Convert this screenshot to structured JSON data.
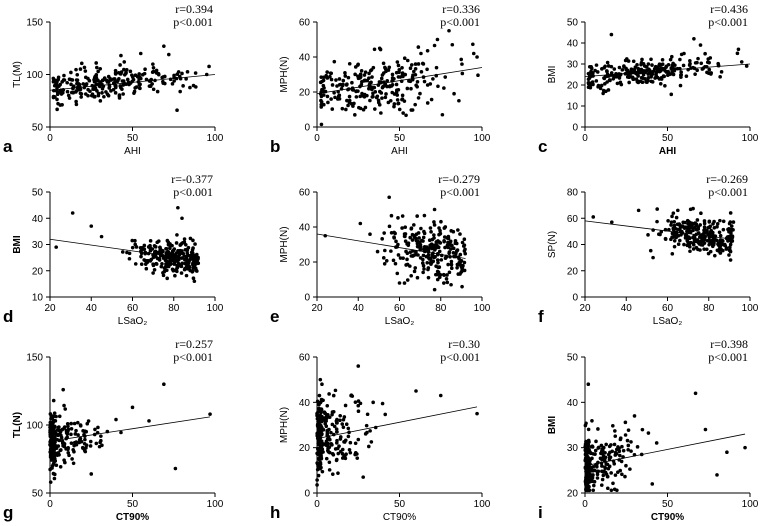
{
  "figure": {
    "background": "#ffffff",
    "point_color": "#000000",
    "line_color": "#000000"
  },
  "chart_data": [
    {
      "id": "a",
      "type": "scatter",
      "panel_label": "a",
      "xlabel": "AHI",
      "xlabel_bold": false,
      "ylabel": "TL(M)",
      "ylabel_bold": false,
      "xlim": [
        0,
        100
      ],
      "ylim": [
        50,
        150
      ],
      "xticks": [
        "0",
        "50",
        "100"
      ],
      "yticks": [
        "50",
        "100",
        "150"
      ],
      "stat_r": "r=0.394",
      "stat_p": "p<0.001",
      "fit": {
        "x0": 0,
        "y0": 85,
        "x1": 100,
        "y1": 100
      },
      "cloud": {
        "n": 260,
        "x_mean": 35,
        "x_sd": 23,
        "x_min": 2,
        "x_max": 98,
        "y_sd": 8,
        "seed": 11
      },
      "points": [
        [
          80,
          101
        ],
        [
          95,
          100
        ],
        [
          69,
          127
        ],
        [
          72,
          119
        ],
        [
          55,
          120
        ],
        [
          43,
          118
        ],
        [
          77,
          66
        ],
        [
          45,
          112
        ],
        [
          28,
          111
        ]
      ]
    },
    {
      "id": "b",
      "type": "scatter",
      "panel_label": "b",
      "xlabel": "AHI",
      "xlabel_bold": false,
      "ylabel": "MPH(N)",
      "ylabel_bold": false,
      "xlim": [
        0,
        100
      ],
      "ylim": [
        0,
        60
      ],
      "xticks": [
        "0",
        "50",
        "100"
      ],
      "yticks": [
        "0",
        "20",
        "40",
        "60"
      ],
      "stat_r": "r=0.336",
      "stat_p": "p<0.001",
      "fit": {
        "x0": 0,
        "y0": 19,
        "x1": 100,
        "y1": 34
      },
      "cloud": {
        "n": 260,
        "x_mean": 35,
        "x_sd": 23,
        "x_min": 2,
        "x_max": 98,
        "y_sd": 8,
        "seed": 23
      },
      "points": [
        [
          80,
          55
        ],
        [
          73,
          50
        ],
        [
          82,
          47
        ],
        [
          95,
          42
        ],
        [
          97,
          40
        ],
        [
          63,
          42
        ],
        [
          38,
          45
        ],
        [
          76,
          7
        ],
        [
          86,
          15
        ],
        [
          55,
          38
        ]
      ]
    },
    {
      "id": "c",
      "type": "scatter",
      "panel_label": "c",
      "xlabel": "AHI",
      "xlabel_bold": true,
      "ylabel": "BMI",
      "ylabel_bold": false,
      "xlim": [
        0,
        100
      ],
      "ylim": [
        0,
        50
      ],
      "xticks": [
        "0",
        "50",
        "100"
      ],
      "yticks": [
        "0",
        "10",
        "20",
        "30",
        "40",
        "50"
      ],
      "stat_r": "r=0.436",
      "stat_p": "p<0.001",
      "fit": {
        "x0": 0,
        "y0": 24,
        "x1": 100,
        "y1": 30
      },
      "cloud": {
        "n": 260,
        "x_mean": 35,
        "x_sd": 23,
        "x_min": 2,
        "x_max": 98,
        "y_sd": 3.2,
        "seed": 37
      },
      "points": [
        [
          16,
          44
        ],
        [
          66,
          42
        ],
        [
          93,
          37
        ],
        [
          95,
          31
        ],
        [
          98,
          29
        ],
        [
          11,
          16
        ],
        [
          70,
          39
        ],
        [
          60,
          35
        ]
      ]
    },
    {
      "id": "d",
      "type": "scatter",
      "panel_label": "d",
      "xlabel": "LSaO₂",
      "xlabel_bold": false,
      "ylabel": "BMI",
      "ylabel_bold": true,
      "xlim": [
        20,
        100
      ],
      "ylim": [
        10,
        50
      ],
      "xticks": [
        "20",
        "40",
        "60",
        "80",
        "100"
      ],
      "yticks": [
        "10",
        "20",
        "30",
        "40",
        "50"
      ],
      "stat_r": "r=-0.377",
      "stat_p": "p<0.001",
      "fit": {
        "x0": 20,
        "y0": 32,
        "x1": 92,
        "y1": 24
      },
      "cloud": {
        "n": 260,
        "x_mean": 80,
        "x_sd": 9,
        "x_min": 35,
        "x_max": 92,
        "y_sd": 3.2,
        "seed": 53
      },
      "points": [
        [
          23,
          29
        ],
        [
          31,
          42
        ],
        [
          82,
          44
        ],
        [
          84,
          40
        ],
        [
          40,
          37
        ],
        [
          90,
          16
        ],
        [
          45,
          33
        ]
      ]
    },
    {
      "id": "e",
      "type": "scatter",
      "panel_label": "e",
      "xlabel": "LSaO₂",
      "xlabel_bold": false,
      "ylabel": "MPH(N)",
      "ylabel_bold": false,
      "xlim": [
        20,
        100
      ],
      "ylim": [
        0,
        60
      ],
      "xticks": [
        "20",
        "40",
        "60",
        "80",
        "100"
      ],
      "yticks": [
        "0",
        "20",
        "40",
        "60"
      ],
      "stat_r": "r=-0.279",
      "stat_p": "p<0.001",
      "fit": {
        "x0": 20,
        "y0": 36,
        "x1": 92,
        "y1": 22
      },
      "cloud": {
        "n": 260,
        "x_mean": 76,
        "x_sd": 10,
        "x_min": 35,
        "x_max": 92,
        "y_sd": 8,
        "seed": 71
      },
      "points": [
        [
          24,
          35
        ],
        [
          55,
          57
        ],
        [
          77,
          50
        ],
        [
          41,
          42
        ],
        [
          60,
          8
        ],
        [
          85,
          7
        ]
      ]
    },
    {
      "id": "f",
      "type": "scatter",
      "panel_label": "f",
      "xlabel": "LSaO₂",
      "xlabel_bold": false,
      "ylabel": "SP(N)",
      "ylabel_bold": false,
      "xlim": [
        20,
        100
      ],
      "ylim": [
        0,
        80
      ],
      "xticks": [
        "20",
        "40",
        "60",
        "80",
        "100"
      ],
      "yticks": [
        "0",
        "20",
        "40",
        "60",
        "80"
      ],
      "stat_r": "r=-0.269",
      "stat_p": "p<0.001",
      "fit": {
        "x0": 20,
        "y0": 58,
        "x1": 92,
        "y1": 44
      },
      "cloud": {
        "n": 260,
        "x_mean": 76,
        "x_sd": 10,
        "x_min": 35,
        "x_max": 92,
        "y_sd": 7,
        "seed": 89
      },
      "points": [
        [
          24,
          61
        ],
        [
          33,
          57
        ],
        [
          53,
          30
        ],
        [
          55,
          67
        ],
        [
          46,
          66
        ],
        [
          65,
          66
        ]
      ]
    },
    {
      "id": "g",
      "type": "scatter",
      "panel_label": "g",
      "xlabel": "CT90%",
      "xlabel_bold": true,
      "ylabel": "TL(N)",
      "ylabel_bold": true,
      "xlim": [
        0,
        100
      ],
      "ylim": [
        50,
        150
      ],
      "xticks": [
        "0",
        "50",
        "100"
      ],
      "yticks": [
        "50",
        "100",
        "150"
      ],
      "stat_r": "r=0.257",
      "stat_p": "p<0.001",
      "fit": {
        "x0": 0,
        "y0": 88,
        "x1": 97,
        "y1": 106
      },
      "cloud": {
        "n": 260,
        "x_mean": 3,
        "x_sd": 14,
        "x_min": 0,
        "x_max": 80,
        "y_sd": 9,
        "seed": 101
      },
      "points": [
        [
          69,
          130
        ],
        [
          97,
          108
        ],
        [
          76,
          68
        ],
        [
          50,
          113
        ],
        [
          25,
          64
        ],
        [
          8,
          126
        ],
        [
          60,
          103
        ],
        [
          40,
          104
        ]
      ]
    },
    {
      "id": "h",
      "type": "scatter",
      "panel_label": "h",
      "xlabel": "CT90%",
      "xlabel_bold": false,
      "ylabel": "MPH(N)",
      "ylabel_bold": false,
      "xlim": [
        0,
        100
      ],
      "ylim": [
        0,
        60
      ],
      "xticks": [
        "0",
        "50",
        "100"
      ],
      "yticks": [
        "0",
        "20",
        "40",
        "60"
      ],
      "stat_r": "r=0.30",
      "stat_p": "p<0.001",
      "fit": {
        "x0": 0,
        "y0": 24,
        "x1": 97,
        "y1": 38
      },
      "cloud": {
        "n": 260,
        "x_mean": 3,
        "x_sd": 14,
        "x_min": 0,
        "x_max": 80,
        "y_sd": 8,
        "seed": 131
      },
      "points": [
        [
          25,
          56
        ],
        [
          97,
          35
        ],
        [
          60,
          45
        ],
        [
          75,
          43
        ],
        [
          28,
          7
        ],
        [
          2,
          50
        ],
        [
          3,
          48
        ]
      ]
    },
    {
      "id": "i",
      "type": "scatter",
      "panel_label": "i",
      "xlabel": "CT90%",
      "xlabel_bold": true,
      "ylabel": "BMI",
      "ylabel_bold": true,
      "xlim": [
        0,
        100
      ],
      "ylim": [
        20,
        50
      ],
      "xticks": [
        "0",
        "50",
        "100"
      ],
      "yticks": [
        "20",
        "30",
        "40",
        "50"
      ],
      "stat_r": "r=0.398",
      "stat_p": "p<0.001",
      "fit": {
        "x0": 0,
        "y0": 26,
        "x1": 97,
        "y1": 33
      },
      "cloud": {
        "n": 260,
        "x_mean": 3,
        "x_sd": 14,
        "x_min": 0,
        "x_max": 80,
        "y_sd": 3.2,
        "seed": 151
      },
      "points": [
        [
          67,
          42
        ],
        [
          2,
          44
        ],
        [
          73,
          34
        ],
        [
          80,
          24
        ],
        [
          97,
          30
        ],
        [
          86,
          29
        ],
        [
          30,
          37
        ]
      ]
    }
  ]
}
